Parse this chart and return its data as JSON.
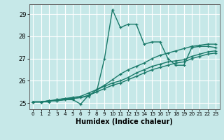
{
  "xlabel": "Humidex (Indice chaleur)",
  "background_color": "#c6e8e8",
  "grid_color": "#ffffff",
  "line_color": "#1a7a6a",
  "xlim": [
    -0.5,
    23.5
  ],
  "ylim": [
    24.72,
    29.45
  ],
  "yticks": [
    25,
    26,
    27,
    28,
    29
  ],
  "xticks": [
    0,
    1,
    2,
    3,
    4,
    5,
    6,
    7,
    8,
    9,
    10,
    11,
    12,
    13,
    14,
    15,
    16,
    17,
    18,
    19,
    20,
    21,
    22,
    23
  ],
  "series": [
    [
      25.05,
      25.05,
      25.1,
      25.1,
      25.15,
      25.15,
      24.95,
      25.35,
      25.5,
      27.0,
      29.2,
      28.4,
      28.55,
      28.55,
      27.65,
      27.75,
      27.75,
      27.0,
      26.7,
      26.7,
      27.5,
      27.55,
      27.55,
      27.5
    ],
    [
      25.05,
      25.05,
      25.1,
      25.15,
      25.2,
      25.2,
      25.25,
      25.3,
      25.6,
      25.8,
      26.05,
      26.3,
      26.5,
      26.65,
      26.8,
      27.0,
      27.15,
      27.25,
      27.35,
      27.45,
      27.55,
      27.6,
      27.65,
      27.65
    ],
    [
      25.05,
      25.05,
      25.05,
      25.15,
      25.2,
      25.25,
      25.3,
      25.45,
      25.6,
      25.75,
      25.9,
      26.0,
      26.15,
      26.35,
      26.5,
      26.65,
      26.75,
      26.85,
      26.9,
      26.95,
      27.1,
      27.2,
      27.3,
      27.35
    ],
    [
      25.05,
      25.05,
      25.1,
      25.1,
      25.15,
      25.2,
      25.25,
      25.35,
      25.5,
      25.65,
      25.8,
      25.9,
      26.05,
      26.2,
      26.35,
      26.5,
      26.6,
      26.7,
      26.8,
      26.85,
      27.0,
      27.1,
      27.2,
      27.25
    ]
  ]
}
